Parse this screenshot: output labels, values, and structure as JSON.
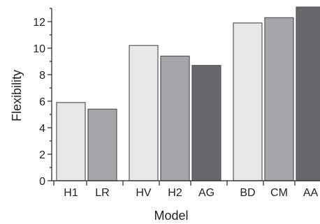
{
  "chart_data": {
    "type": "bar",
    "title": "",
    "xlabel": "Model",
    "ylabel": "Flexibility",
    "ylim": [
      0,
      13
    ],
    "yticks": [
      0,
      2,
      4,
      6,
      8,
      10,
      12
    ],
    "grid": false,
    "legend": "none",
    "groups": [
      [
        "H1",
        "LR"
      ],
      [
        "HV",
        "H2",
        "AG"
      ],
      [
        "BD",
        "CM",
        "AA"
      ]
    ],
    "categories": [
      "H1",
      "LR",
      "HV",
      "H2",
      "AG",
      "BD",
      "CM",
      "AA"
    ],
    "values": [
      5.9,
      5.4,
      10.2,
      9.4,
      8.7,
      11.9,
      12.3,
      13.1
    ],
    "colors": [
      "#e8e8ea",
      "#a6a6aa",
      "#e8e8ea",
      "#a6a6aa",
      "#68686c",
      "#e8e8ea",
      "#a6a6aa",
      "#68686c"
    ]
  }
}
